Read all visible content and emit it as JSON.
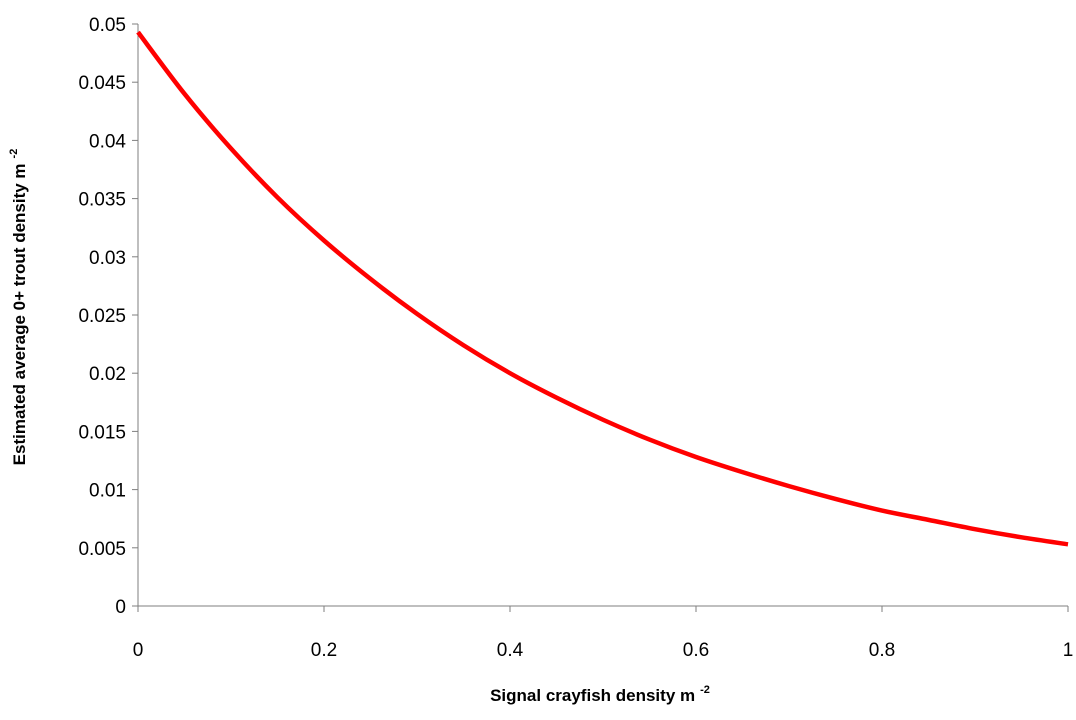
{
  "chart_data": {
    "type": "line",
    "xlabel": "Signal crayfish density m",
    "xlabel_superscript": "-2",
    "ylabel": "Estimated average 0+ trout density m",
    "ylabel_superscript": "-2",
    "xlim": [
      0,
      1
    ],
    "ylim": [
      0,
      0.05
    ],
    "xticks": [
      "0",
      "0.2",
      "0.4",
      "0.6",
      "0.8",
      "1"
    ],
    "yticks": [
      "0",
      "0.005",
      "0.01",
      "0.015",
      "0.02",
      "0.025",
      "0.03",
      "0.035",
      "0.04",
      "0.045",
      "0.05"
    ],
    "grid": false,
    "legend": "none",
    "series": [
      {
        "color": "#ff0000",
        "x": [
          0,
          0.05,
          0.1,
          0.15,
          0.2,
          0.25,
          0.3,
          0.35,
          0.4,
          0.45,
          0.5,
          0.55,
          0.6,
          0.65,
          0.7,
          0.75,
          0.8,
          0.85,
          0.9,
          0.95,
          1.0
        ],
        "y": [
          0.0493,
          0.044,
          0.0393,
          0.0351,
          0.0314,
          0.0281,
          0.0251,
          0.0224,
          0.02,
          0.0179,
          0.016,
          0.0143,
          0.0128,
          0.0115,
          0.0103,
          0.0092,
          0.0082,
          0.0074,
          0.0066,
          0.0059,
          0.0053
        ]
      }
    ]
  }
}
